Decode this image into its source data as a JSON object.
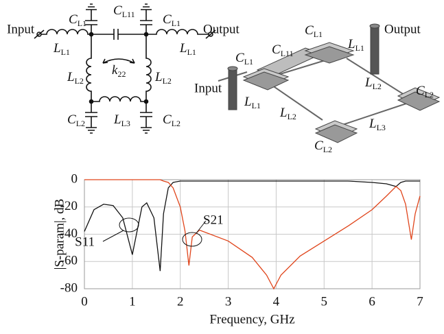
{
  "diagram": {
    "schematic_labels": [
      {
        "text": "Input"
      },
      {
        "text": "Output"
      },
      {
        "symbol": "C",
        "subscript": "L1"
      },
      {
        "symbol": "C",
        "subscript": "L11"
      },
      {
        "symbol": "C",
        "subscript": "L1"
      },
      {
        "symbol": "L",
        "subscript": "L1"
      },
      {
        "symbol": "L",
        "subscript": "L1"
      },
      {
        "symbol": "k",
        "subscript": "22"
      },
      {
        "symbol": "L",
        "subscript": "L2"
      },
      {
        "symbol": "L",
        "subscript": "L2"
      },
      {
        "symbol": "L",
        "subscript": "L3"
      },
      {
        "symbol": "C",
        "subscript": "L2"
      },
      {
        "symbol": "C",
        "subscript": "L2"
      }
    ],
    "layout_labels": [
      {
        "symbol": "C",
        "subscript": "L1"
      },
      {
        "symbol": "L",
        "subscript": "L1"
      },
      {
        "text": "Output"
      },
      {
        "symbol": "C",
        "subscript": "L1"
      },
      {
        "symbol": "C",
        "subscript": "L11"
      },
      {
        "text": "Input"
      },
      {
        "symbol": "L",
        "subscript": "L1"
      },
      {
        "symbol": "L",
        "subscript": "L2"
      },
      {
        "symbol": "L",
        "subscript": "L2"
      },
      {
        "symbol": "C",
        "subscript": "L2"
      },
      {
        "symbol": "L",
        "subscript": "L3"
      },
      {
        "symbol": "C",
        "subscript": "L2"
      }
    ]
  },
  "chart_data": {
    "type": "line",
    "x_label": "Frequency, GHz",
    "y_label": "|S-param|, dB",
    "x": [
      0,
      0.2,
      0.4,
      0.6,
      0.8,
      1.0,
      1.2,
      1.3,
      1.45,
      1.58,
      1.65,
      1.75,
      1.85,
      2.0,
      2.1,
      2.18,
      2.25,
      2.4,
      3,
      3.5,
      3.8,
      3.95,
      4.1,
      4.5,
      5,
      5.5,
      6,
      6.3,
      6.5,
      6.6,
      6.7,
      6.82,
      6.9,
      7
    ],
    "series": [
      {
        "name": "S11",
        "color": "#111111",
        "values": [
          -38,
          -22,
          -18,
          -19,
          -28,
          -55,
          -20,
          -17,
          -28,
          -67,
          -25,
          -6,
          -2,
          -1,
          -1,
          -1,
          -1,
          -1,
          -1,
          -1,
          -1,
          -1,
          -1,
          -1,
          -1,
          -1,
          -2,
          -3,
          -5,
          -2,
          -1,
          -1,
          -1,
          -1
        ]
      },
      {
        "name": "S21",
        "color": "#e0441a",
        "values": [
          0,
          0,
          0,
          0,
          0,
          0,
          0,
          0,
          0,
          0,
          -1,
          -2,
          -6,
          -20,
          -38,
          -63,
          -42,
          -37,
          -45,
          -57,
          -70,
          -80,
          -70,
          -56,
          -45,
          -34,
          -22,
          -12,
          -5,
          -8,
          -18,
          -44,
          -25,
          -12
        ]
      }
    ],
    "xlim": [
      0,
      7
    ],
    "ylim": [
      -80,
      0
    ],
    "xticks": [
      0,
      1,
      2,
      3,
      4,
      5,
      6,
      7
    ],
    "yticks": [
      -80,
      -60,
      -40,
      -20,
      0
    ],
    "grid": true
  }
}
